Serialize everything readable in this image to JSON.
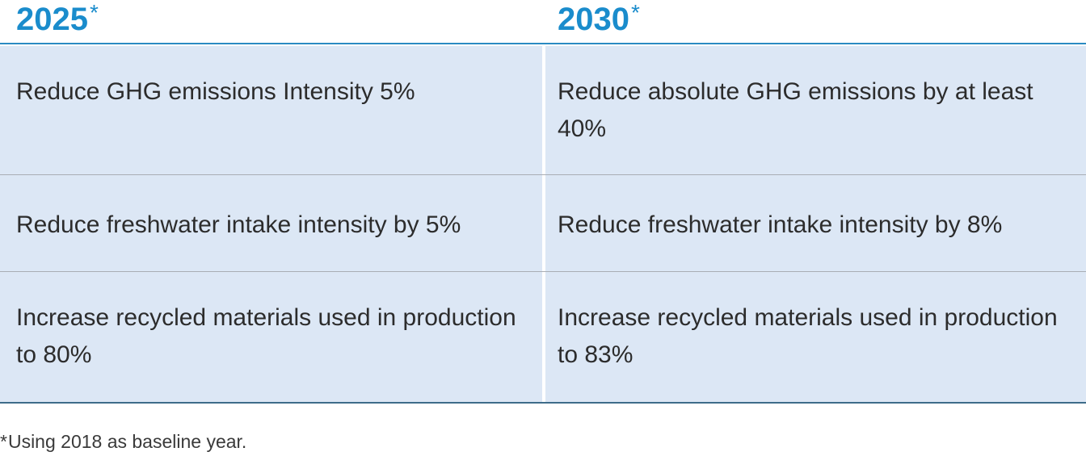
{
  "header": {
    "col1_year": "2025",
    "col2_year": "2030",
    "asterisk": "*"
  },
  "rows": [
    {
      "goal_2025": "Reduce GHG emissions Intensity 5%",
      "goal_2030": "Reduce absolute GHG emissions by at least 40%"
    },
    {
      "goal_2025": "Reduce freshwater intake intensity by 5%",
      "goal_2030": "Reduce freshwater intake intensity by 8%"
    },
    {
      "goal_2025": "Increase recycled materials used in production to 80%",
      "goal_2030": "Increase recycled materials used in production to 83%"
    }
  ],
  "footnote": {
    "asterisk": "*",
    "text": "Using 2018 as baseline year."
  },
  "colors": {
    "heading": "#1a8ccc",
    "cell_background": "#dce7f5",
    "header_rule": "#2a8bc2",
    "bottom_rule": "#3e6c8a"
  }
}
